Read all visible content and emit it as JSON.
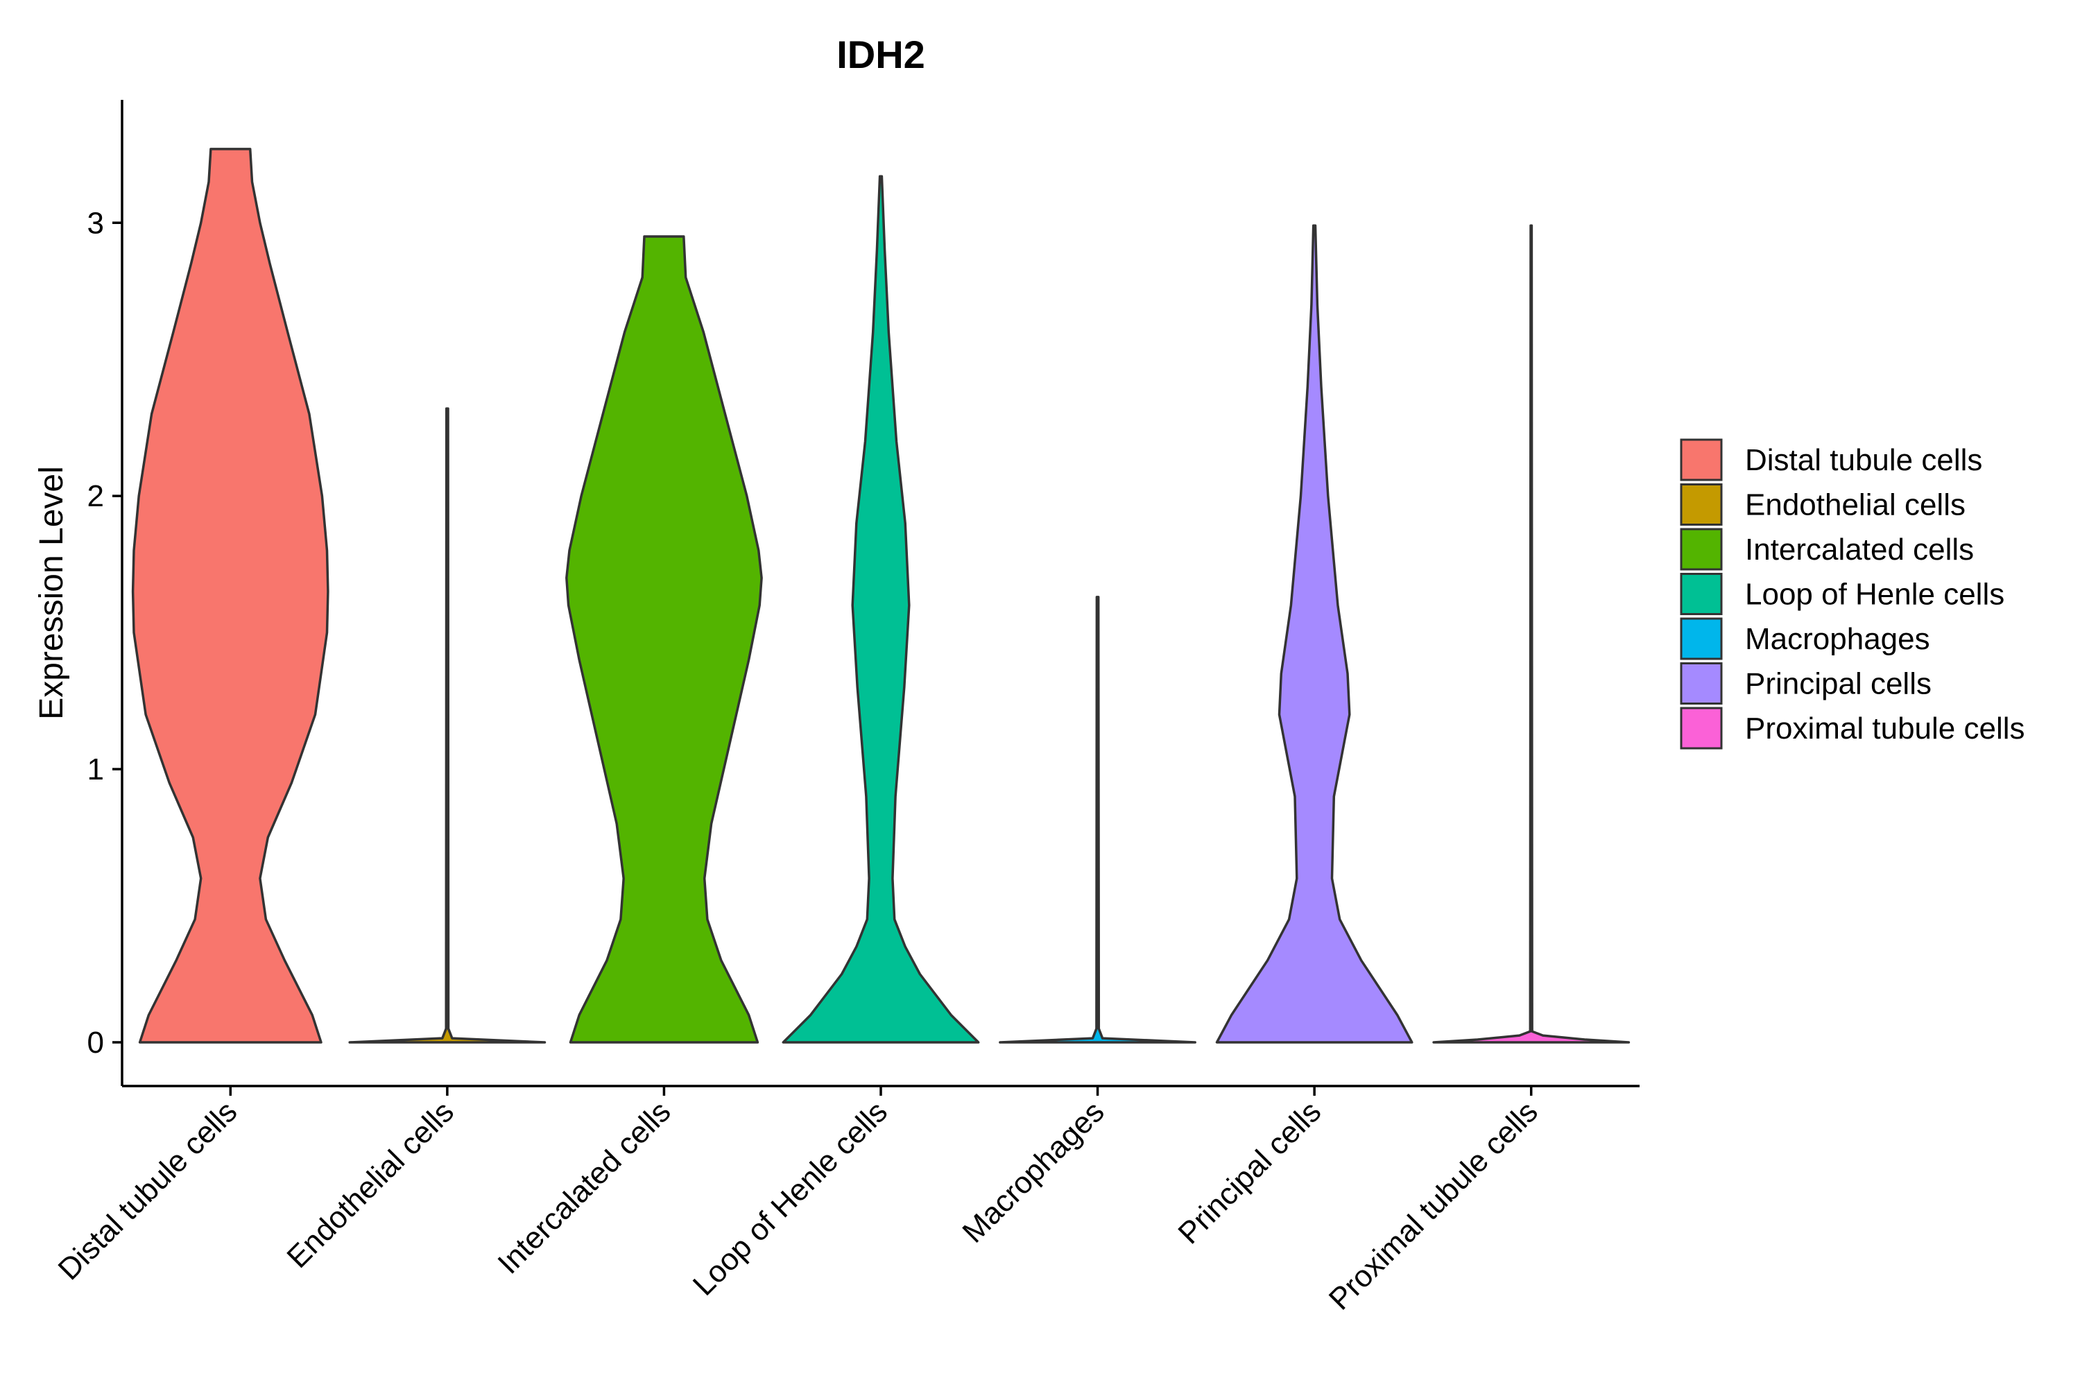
{
  "chart_data": {
    "type": "violin",
    "title": "IDH2",
    "xlabel": "",
    "ylabel": "Expression Level",
    "ylim": [
      -0.16,
      3.45
    ],
    "yticks": [
      0,
      1,
      2,
      3
    ],
    "grid": false,
    "legend_position": "right",
    "categories": [
      "Distal tubule cells",
      "Endothelial cells",
      "Intercalated cells",
      "Loop of Henle cells",
      "Macrophages",
      "Principal cells",
      "Proximal tubule cells"
    ],
    "series": [
      {
        "name": "Distal tubule cells",
        "color": "#F8766D",
        "min": 0,
        "max": 3.27,
        "density": [
          [
            0,
            0.92
          ],
          [
            0.1,
            0.83
          ],
          [
            0.3,
            0.55
          ],
          [
            0.45,
            0.36
          ],
          [
            0.6,
            0.3
          ],
          [
            0.75,
            0.38
          ],
          [
            0.95,
            0.62
          ],
          [
            1.2,
            0.86
          ],
          [
            1.5,
            0.98
          ],
          [
            1.65,
            0.99
          ],
          [
            1.8,
            0.98
          ],
          [
            2.0,
            0.93
          ],
          [
            2.3,
            0.8
          ],
          [
            2.6,
            0.58
          ],
          [
            2.85,
            0.4
          ],
          [
            3.0,
            0.3
          ],
          [
            3.15,
            0.22
          ],
          [
            3.27,
            0.2
          ]
        ]
      },
      {
        "name": "Endothelial cells",
        "color": "#C49A00",
        "min": 0,
        "max": 2.32,
        "density": [
          [
            0,
            1.0
          ],
          [
            0.015,
            0.05
          ],
          [
            0.05,
            0.012
          ],
          [
            2.32,
            0.008
          ]
        ]
      },
      {
        "name": "Intercalated cells",
        "color": "#53B400",
        "min": 0,
        "max": 2.95,
        "density": [
          [
            0,
            0.95
          ],
          [
            0.1,
            0.86
          ],
          [
            0.3,
            0.58
          ],
          [
            0.45,
            0.44
          ],
          [
            0.6,
            0.41
          ],
          [
            0.8,
            0.48
          ],
          [
            1.1,
            0.67
          ],
          [
            1.4,
            0.86
          ],
          [
            1.6,
            0.97
          ],
          [
            1.7,
            0.99
          ],
          [
            1.8,
            0.96
          ],
          [
            2.0,
            0.84
          ],
          [
            2.3,
            0.62
          ],
          [
            2.6,
            0.4
          ],
          [
            2.8,
            0.22
          ],
          [
            2.95,
            0.2
          ]
        ]
      },
      {
        "name": "Loop of Henle cells",
        "color": "#00C094",
        "min": 0,
        "max": 3.17,
        "density": [
          [
            0,
            1.0
          ],
          [
            0.1,
            0.72
          ],
          [
            0.25,
            0.4
          ],
          [
            0.35,
            0.25
          ],
          [
            0.45,
            0.14
          ],
          [
            0.6,
            0.12
          ],
          [
            0.9,
            0.15
          ],
          [
            1.3,
            0.24
          ],
          [
            1.6,
            0.29
          ],
          [
            1.9,
            0.25
          ],
          [
            2.2,
            0.16
          ],
          [
            2.6,
            0.08
          ],
          [
            2.9,
            0.04
          ],
          [
            3.17,
            0.01
          ]
        ]
      },
      {
        "name": "Macrophages",
        "color": "#00B6EB",
        "min": 0,
        "max": 1.63,
        "density": [
          [
            0,
            1.0
          ],
          [
            0.015,
            0.05
          ],
          [
            0.05,
            0.012
          ],
          [
            1.63,
            0.008
          ]
        ]
      },
      {
        "name": "Principal cells",
        "color": "#A58AFF",
        "min": 0,
        "max": 2.99,
        "density": [
          [
            0,
            1.0
          ],
          [
            0.1,
            0.85
          ],
          [
            0.3,
            0.48
          ],
          [
            0.45,
            0.26
          ],
          [
            0.6,
            0.18
          ],
          [
            0.9,
            0.2
          ],
          [
            1.2,
            0.36
          ],
          [
            1.35,
            0.34
          ],
          [
            1.6,
            0.24
          ],
          [
            2.0,
            0.14
          ],
          [
            2.4,
            0.07
          ],
          [
            2.7,
            0.03
          ],
          [
            2.99,
            0.01
          ]
        ]
      },
      {
        "name": "Proximal tubule cells",
        "color": "#FB61D7",
        "min": 0,
        "max": 2.99,
        "density": [
          [
            0,
            1.0
          ],
          [
            0.01,
            0.55
          ],
          [
            0.025,
            0.12
          ],
          [
            0.04,
            0.01
          ],
          [
            2.99,
            0.005
          ]
        ]
      }
    ]
  }
}
